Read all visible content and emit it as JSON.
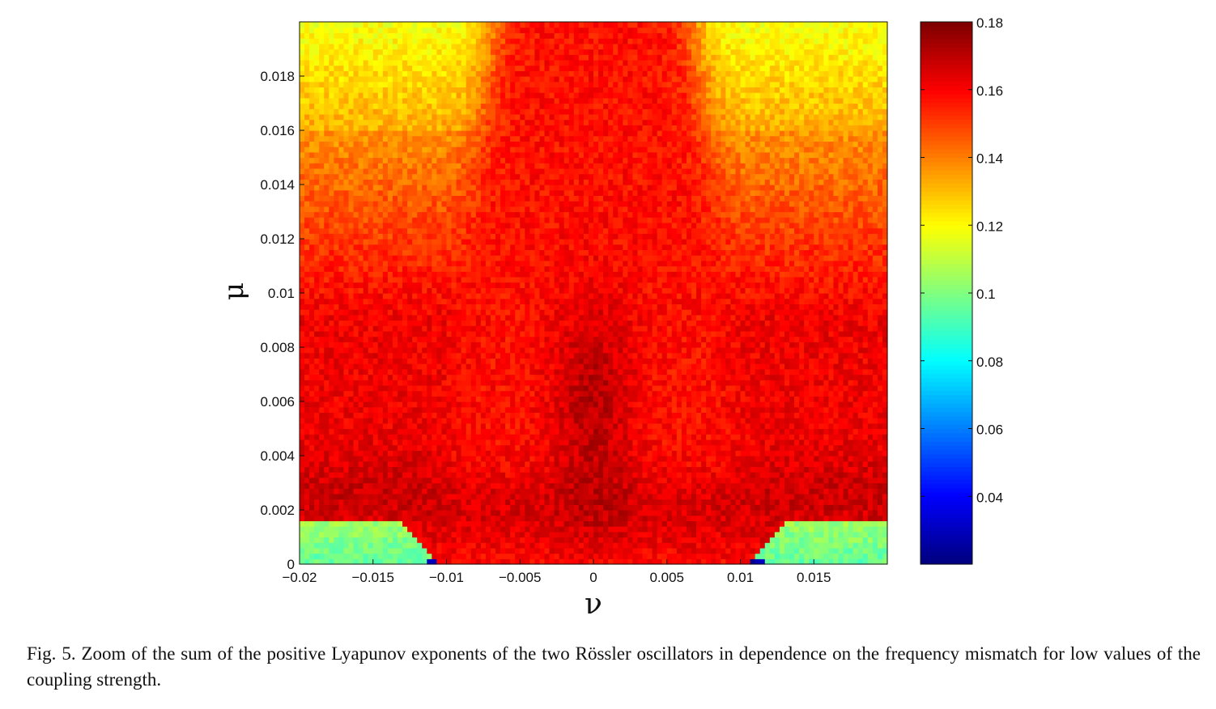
{
  "chart_data": {
    "type": "heatmap",
    "title": "",
    "xlabel": "ν",
    "ylabel": "μ",
    "xlim": [
      -0.02,
      0.02
    ],
    "ylim": [
      0,
      0.02
    ],
    "x_ticks": [
      {
        "value": -0.02,
        "label": "−0.02"
      },
      {
        "value": -0.015,
        "label": "−0.015"
      },
      {
        "value": -0.01,
        "label": "−0.01"
      },
      {
        "value": -0.005,
        "label": "−0.005"
      },
      {
        "value": 0,
        "label": "0"
      },
      {
        "value": 0.005,
        "label": "0.005"
      },
      {
        "value": 0.01,
        "label": "0.01"
      },
      {
        "value": 0.015,
        "label": "0.015"
      }
    ],
    "y_ticks": [
      {
        "value": 0,
        "label": "0"
      },
      {
        "value": 0.002,
        "label": "0.002"
      },
      {
        "value": 0.004,
        "label": "0.004"
      },
      {
        "value": 0.006,
        "label": "0.006"
      },
      {
        "value": 0.008,
        "label": "0.008"
      },
      {
        "value": 0.01,
        "label": "0.01"
      },
      {
        "value": 0.012,
        "label": "0.012"
      },
      {
        "value": 0.014,
        "label": "0.014"
      },
      {
        "value": 0.016,
        "label": "0.016"
      },
      {
        "value": 0.018,
        "label": "0.018"
      }
    ],
    "colorbar": {
      "colormap": "jet",
      "range": [
        0.02,
        0.18
      ],
      "ticks": [
        {
          "value": 0.04,
          "label": "0.04"
        },
        {
          "value": 0.06,
          "label": "0.06"
        },
        {
          "value": 0.08,
          "label": "0.08"
        },
        {
          "value": 0.1,
          "label": "0.1"
        },
        {
          "value": 0.12,
          "label": "0.12"
        },
        {
          "value": 0.14,
          "label": "0.14"
        },
        {
          "value": 0.16,
          "label": "0.16"
        },
        {
          "value": 0.18,
          "label": "0.18"
        }
      ]
    },
    "regions": [
      {
        "description": "central band |ν| < 0.007 across all μ",
        "value_approx": 0.16
      },
      {
        "description": "dark core near ν = 0, μ 0.004–0.008",
        "value_approx": 0.17
      },
      {
        "description": "upper corners |ν| > 0.011, μ > 0.012",
        "value_approx": 0.125
      },
      {
        "description": "mid-outer region |ν| > 0.01, μ 0.004–0.012",
        "value_approx": 0.155
      },
      {
        "description": "low-μ wedges |ν| > 0.011, μ < 0.0015",
        "value_approx": 0.095
      },
      {
        "description": "minimum points near ν = ±0.011, μ = 0",
        "value_approx": 0.025
      }
    ]
  },
  "caption": "Fig. 5. Zoom of the sum of the positive Lyapunov exponents of the two Rössler oscillators in dependence on the frequency mismatch for low values of the coupling strength.",
  "colors": {
    "axis": "#111111",
    "background": "#ffffff"
  }
}
